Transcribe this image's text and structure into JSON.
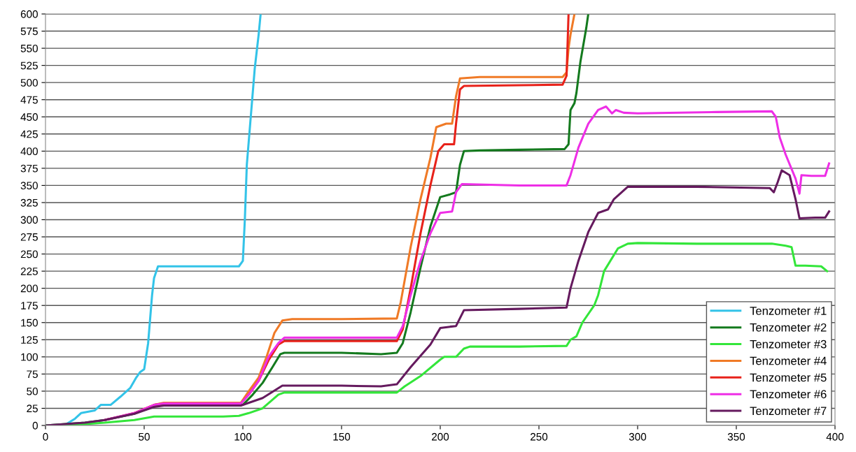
{
  "chart_data": {
    "type": "line",
    "xlim": [
      0,
      400
    ],
    "ylim": [
      0,
      600
    ],
    "xticks": [
      0,
      50,
      100,
      150,
      200,
      250,
      300,
      350,
      400
    ],
    "yticks": [
      0,
      25,
      50,
      75,
      100,
      125,
      150,
      175,
      200,
      225,
      250,
      275,
      300,
      325,
      350,
      375,
      400,
      425,
      450,
      475,
      500,
      525,
      550,
      575,
      600
    ],
    "grid": "y",
    "legend": "lower right",
    "marker": "none",
    "line_style": "solid",
    "series": [
      {
        "name": "Tenzometer #1",
        "color": "#33c3e8",
        "x": [
          0,
          10,
          15,
          18,
          25,
          28,
          33,
          38,
          43,
          46,
          48,
          50,
          52,
          54,
          55,
          57,
          70,
          90,
          98,
          100,
          101,
          102,
          104,
          106,
          108,
          109
        ],
        "values": [
          0,
          1,
          10,
          18,
          22,
          30,
          30,
          42,
          55,
          70,
          78,
          82,
          120,
          190,
          215,
          232,
          232,
          232,
          232,
          240,
          300,
          380,
          450,
          520,
          570,
          600
        ]
      },
      {
        "name": "Tenzometer #2",
        "color": "#147a1e",
        "x": [
          0,
          20,
          30,
          45,
          55,
          60,
          100,
          105,
          110,
          115,
          119,
          121,
          150,
          170,
          178,
          181,
          185,
          190,
          195,
          200,
          205,
          208,
          210,
          212,
          220,
          240,
          263,
          265,
          266,
          268,
          269,
          271,
          274,
          275
        ],
        "values": [
          0,
          4,
          8,
          17,
          28,
          30,
          30,
          45,
          62,
          85,
          104,
          106,
          106,
          104,
          106,
          120,
          165,
          230,
          290,
          333,
          337,
          340,
          380,
          400,
          401,
          402,
          403,
          410,
          460,
          470,
          485,
          530,
          580,
          600
        ]
      },
      {
        "name": "Tenzometer #3",
        "color": "#33e63a",
        "x": [
          0,
          20,
          30,
          45,
          55,
          60,
          90,
          98,
          103,
          110,
          114,
          118,
          121,
          140,
          160,
          178,
          182,
          190,
          200,
          202,
          208,
          212,
          215,
          240,
          264,
          266,
          269,
          272,
          278,
          280,
          283,
          290,
          295,
          300,
          330,
          360,
          368,
          375,
          378,
          380,
          385,
          393,
          396
        ],
        "values": [
          0,
          2,
          4,
          8,
          13,
          13,
          13,
          14,
          18,
          25,
          35,
          45,
          48,
          48,
          48,
          48,
          57,
          72,
          96,
          100,
          100,
          112,
          115,
          115,
          116,
          125,
          130,
          150,
          175,
          190,
          225,
          258,
          265,
          266,
          265,
          265,
          265,
          262,
          260,
          233,
          233,
          232,
          225
        ]
      },
      {
        "name": "Tenzometer #4",
        "color": "#f07a26",
        "x": [
          45,
          55,
          60,
          99,
          103,
          108,
          112,
          116,
          120,
          125,
          150,
          178,
          180,
          185,
          190,
          195,
          198,
          203,
          206,
          208,
          210,
          220,
          240,
          262,
          264,
          265,
          266,
          268
        ],
        "values": [
          18,
          30,
          33,
          33,
          50,
          70,
          100,
          135,
          153,
          155,
          155,
          156,
          180,
          260,
          330,
          390,
          435,
          440,
          440,
          480,
          506,
          508,
          508,
          508,
          515,
          550,
          570,
          600
        ]
      },
      {
        "name": "Tenzometer #5",
        "color": "#e8221a",
        "x": [
          30,
          45,
          55,
          60,
          99,
          103,
          108,
          113,
          118,
          121,
          150,
          178,
          181,
          185,
          190,
          195,
          199,
          202,
          207,
          208,
          210,
          212,
          240,
          262,
          264,
          265
        ],
        "values": [
          8,
          18,
          30,
          32,
          32,
          45,
          65,
          95,
          118,
          123,
          123,
          123,
          140,
          200,
          280,
          350,
          400,
          410,
          410,
          440,
          490,
          495,
          496,
          497,
          510,
          600
        ]
      },
      {
        "name": "Tenzometer #6",
        "color": "#ee2ee6",
        "x": [
          30,
          45,
          55,
          60,
          99,
          103,
          108,
          113,
          118,
          121,
          150,
          178,
          181,
          185,
          190,
          195,
          200,
          206,
          208,
          211,
          240,
          264,
          266,
          270,
          275,
          280,
          284,
          287,
          289,
          293,
          300,
          340,
          368,
          370,
          372,
          375,
          380,
          382,
          383,
          388,
          395,
          397
        ],
        "values": [
          8,
          18,
          30,
          32,
          32,
          45,
          65,
          100,
          120,
          128,
          128,
          128,
          145,
          190,
          240,
          280,
          310,
          312,
          340,
          352,
          350,
          350,
          365,
          405,
          440,
          460,
          465,
          455,
          460,
          456,
          455,
          457,
          458,
          450,
          420,
          395,
          360,
          338,
          365,
          364,
          364,
          382
        ]
      },
      {
        "name": "Tenzometer #7",
        "color": "#651a5e",
        "x": [
          0,
          20,
          30,
          45,
          55,
          60,
          99,
          110,
          120,
          150,
          170,
          178,
          185,
          195,
          200,
          205,
          208,
          212,
          240,
          264,
          266,
          270,
          275,
          280,
          285,
          288,
          295,
          330,
          367,
          369,
          371,
          373,
          377,
          380,
          382,
          390,
          395,
          397
        ],
        "values": [
          0,
          4,
          8,
          17,
          27,
          29,
          29,
          40,
          58,
          58,
          57,
          60,
          85,
          118,
          142,
          144,
          145,
          168,
          170,
          172,
          200,
          240,
          282,
          310,
          315,
          330,
          348,
          348,
          346,
          340,
          355,
          372,
          365,
          330,
          302,
          303,
          303,
          312
        ]
      }
    ]
  }
}
